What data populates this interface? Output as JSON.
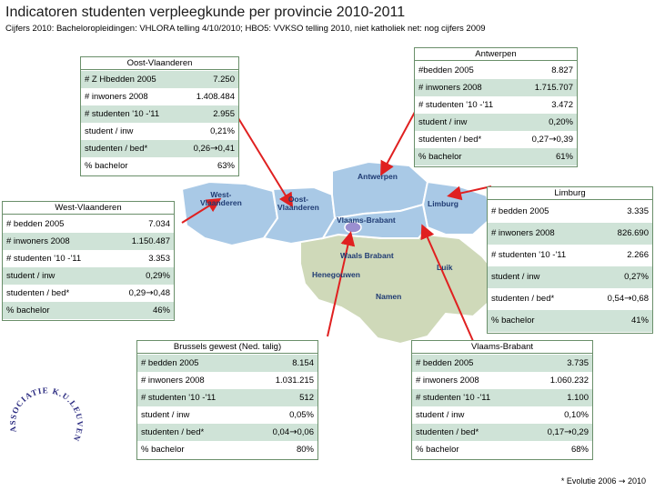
{
  "slide": {
    "title": "Indicatoren studenten verpleegkunde per provincie 2010-2011",
    "subtitle": "Cijfers 2010: Bacheloropleidingen: VHLORA telling 4/10/2010; HBO5: VVKSO telling 2010, niet katholiek net: nog cijfers 2009",
    "footnote_prefix": "* Evolutie 2006",
    "footnote_arrow": "→",
    "footnote_suffix": "2010"
  },
  "map": {
    "labels": {
      "antwerpen": "Antwerpen",
      "west_vlaanderen_1": "West-",
      "west_vlaanderen_2": "Vlaanderen",
      "oost_vlaanderen_1": "Oost-",
      "oost_vlaanderen_2": "Vlaanderen",
      "vlaams_brabant": "Vlaams-Brabant",
      "limburg": "Limburg",
      "waals_brabant": "Waals Brabant",
      "luik": "Luik",
      "henegouwen": "Henegouwen",
      "namen": "Namen"
    },
    "colors": {
      "flanders": "#a9c9e6",
      "wallonia": "#cfd9b9",
      "brussels": "#9b8fd0",
      "border": "#ffffff",
      "label": "#1f3b73",
      "arrow": "#e02020"
    }
  },
  "logo": {
    "text": "ASSOCIATIE K.U.LEUVEN"
  },
  "panels": {
    "oost": {
      "title": "Oost-Vlaanderen",
      "rows": [
        {
          "label": "# Z Hbedden 2005",
          "value": "7.250"
        },
        {
          "label": "# inwoners 2008",
          "value": "1.408.484"
        },
        {
          "label": "# studenten '10 -'11",
          "value": "2.955"
        },
        {
          "label": "student / inw",
          "value": "0,21%"
        },
        {
          "label": "studenten / bed*",
          "from": "0,26",
          "to": "0,41"
        },
        {
          "label": "% bachelor",
          "value": "63%"
        }
      ]
    },
    "antwerpen": {
      "title": "Antwerpen",
      "rows": [
        {
          "label": "#bedden 2005",
          "value": "8.827"
        },
        {
          "label": "# inwoners 2008",
          "value": "1.715.707"
        },
        {
          "label": "# studenten '10 -'11",
          "value": "3.472"
        },
        {
          "label": "student / inw",
          "value": "0,20%"
        },
        {
          "label": "studenten / bed*",
          "from": "0,27",
          "to": "0,39"
        },
        {
          "label": "% bachelor",
          "value": "61%"
        }
      ]
    },
    "west": {
      "title": "West-Vlaanderen",
      "rows": [
        {
          "label": "# bedden 2005",
          "value": "7.034"
        },
        {
          "label": "# inwoners 2008",
          "value": "1.150.487"
        },
        {
          "label": "# studenten '10 -'11",
          "value": "3.353"
        },
        {
          "label": "student / inw",
          "value": "0,29%"
        },
        {
          "label": "studenten / bed*",
          "from": "0,29",
          "to": "0,48"
        },
        {
          "label": "% bachelor",
          "value": "46%"
        }
      ]
    },
    "limburg": {
      "title": "Limburg",
      "rows": [
        {
          "label": "# bedden 2005",
          "value": "3.335"
        },
        {
          "label": "# inwoners 2008",
          "value": "826.690"
        },
        {
          "label": "# studenten '10 -'11",
          "value": "2.266"
        },
        {
          "label": "student / inw",
          "value": "0,27%"
        },
        {
          "label": "studenten / bed*",
          "from": "0,54",
          "to": "0,68"
        },
        {
          "label": "% bachelor",
          "value": "41%"
        }
      ]
    },
    "brussels": {
      "title": "Brussels gewest (Ned. talig)",
      "rows": [
        {
          "label": "# bedden 2005",
          "value": "8.154"
        },
        {
          "label": "# inwoners 2008",
          "value": "1.031.215"
        },
        {
          "label": "# studenten '10 -'11",
          "value": "512"
        },
        {
          "label": "student / inw",
          "value": "0,05%"
        },
        {
          "label": "studenten / bed*",
          "from": "0,04",
          "to": "0,06"
        },
        {
          "label": "% bachelor",
          "value": "80%"
        }
      ]
    },
    "vlaams_brabant": {
      "title": "Vlaams-Brabant",
      "rows": [
        {
          "label": "# bedden 2005",
          "value": "3.735"
        },
        {
          "label": "# inwoners 2008",
          "value": "1.060.232"
        },
        {
          "label": "# studenten '10 -'11",
          "value": "1.100"
        },
        {
          "label": "student / inw",
          "value": "0,10%"
        },
        {
          "label": "studenten / bed*",
          "from": "0,17",
          "to": "0,29"
        },
        {
          "label": "% bachelor",
          "value": "68%"
        }
      ]
    }
  },
  "arrow_glyph": "→"
}
